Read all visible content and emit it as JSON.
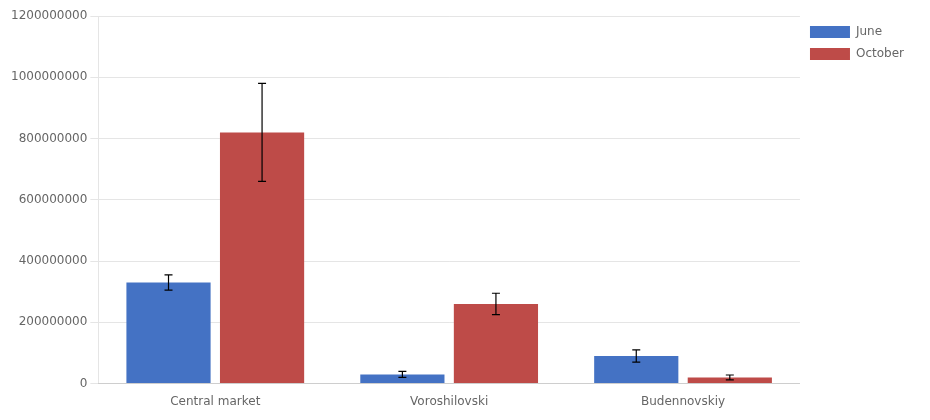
{
  "chart_data": {
    "type": "bar",
    "categories": [
      "Central market",
      "Voroshilovski",
      "Budennovskiy"
    ],
    "series": [
      {
        "name": "June",
        "color": "#4472c4",
        "values": [
          330000000,
          30000000,
          90000000
        ],
        "errors": [
          25000000,
          10000000,
          20000000
        ]
      },
      {
        "name": "October",
        "color": "#be4b48",
        "values": [
          820000000,
          260000000,
          20000000
        ],
        "errors": [
          160000000,
          35000000,
          8000000
        ]
      }
    ],
    "ylim": [
      0,
      1200000000
    ],
    "yticks": [
      0,
      200000000,
      400000000,
      600000000,
      800000000,
      1000000000,
      1200000000
    ],
    "grid": true,
    "legend": "right"
  }
}
